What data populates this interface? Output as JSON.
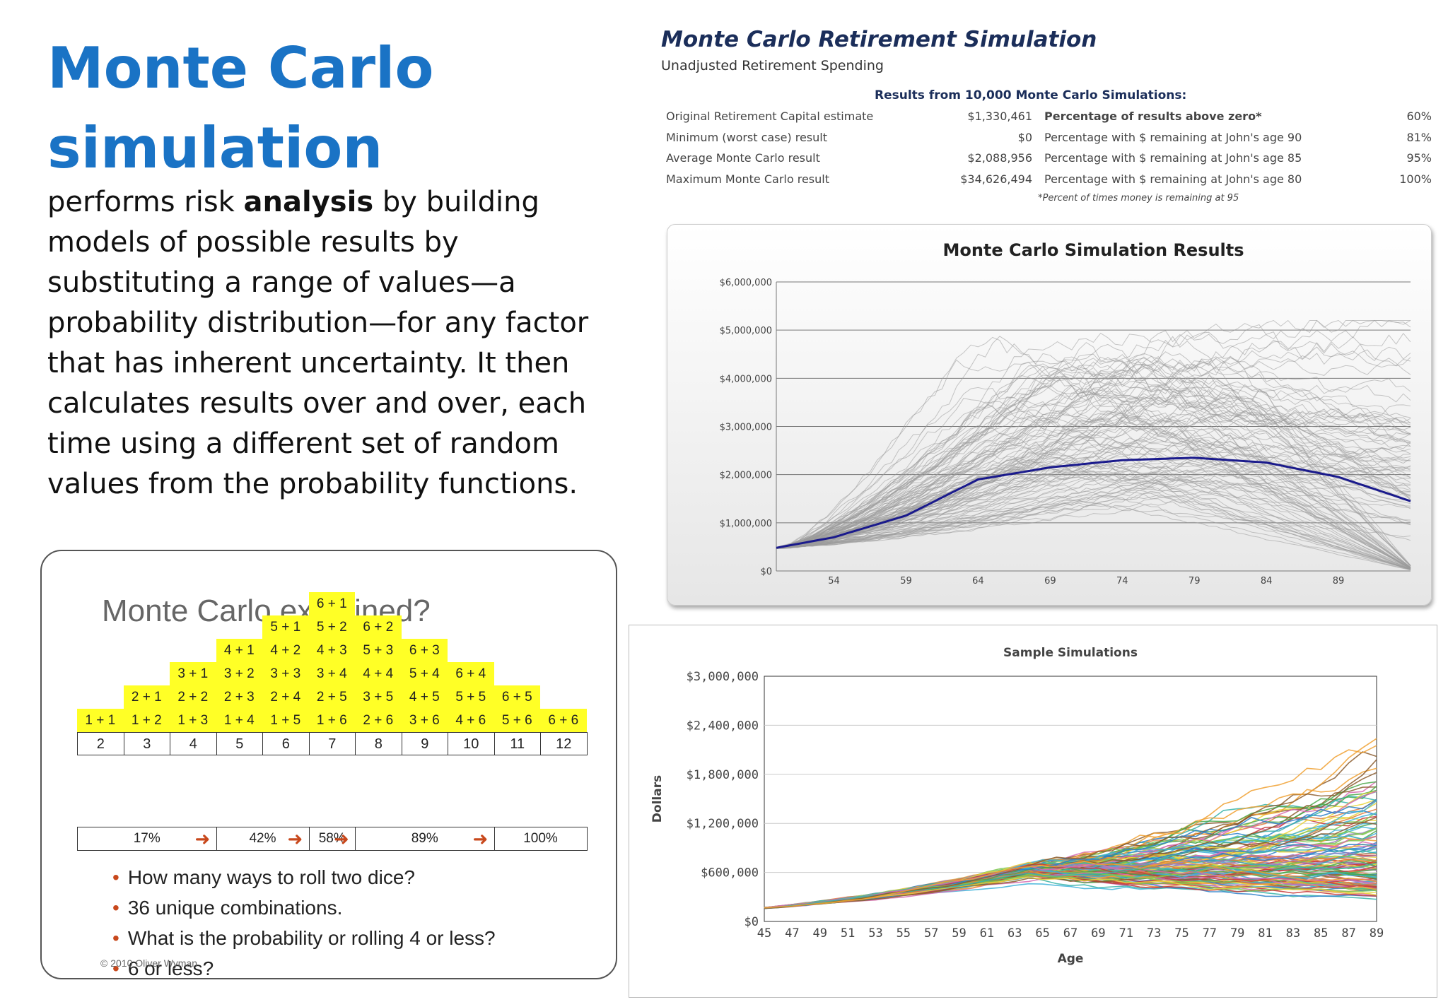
{
  "slide": {
    "title_line1": "Monte Carlo",
    "title_line2": "simulation",
    "body_prefix": "performs risk ",
    "body_bold": "analysis",
    "body_rest": " by building models of possible results by substituting a range of values—a probability distribution—for any factor that has inherent uncertainty. It then calculates results over and over, each time using a different set of random values from the probability functions."
  },
  "dice_panel": {
    "title": "Monte Carlo explained?",
    "rows": [
      [
        "6 + 1"
      ],
      [
        "5 + 1",
        "5 + 2",
        "6 + 2"
      ],
      [
        "4 + 1",
        "4 + 2",
        "4 + 3",
        "5 + 3",
        "6 + 3"
      ],
      [
        "3 + 1",
        "3 + 2",
        "3 + 3",
        "3 + 4",
        "4 + 4",
        "5 + 4",
        "6 + 4"
      ],
      [
        "2 + 1",
        "2 + 2",
        "2 + 3",
        "2 + 4",
        "2 + 5",
        "3 + 5",
        "4 + 5",
        "5 + 5",
        "6 + 5"
      ],
      [
        "1 + 1",
        "1 + 2",
        "1 + 3",
        "1 + 4",
        "1 + 5",
        "1 + 6",
        "2 + 6",
        "3 + 6",
        "4 + 6",
        "5 + 6",
        "6 + 6"
      ]
    ],
    "sums": [
      "2",
      "3",
      "4",
      "5",
      "6",
      "7",
      "8",
      "9",
      "10",
      "11",
      "12"
    ],
    "probabilities": [
      "17%",
      "42%",
      "58%",
      "89%",
      "100%"
    ],
    "arrow_color": "#c8481c",
    "bullets": [
      "How many ways to roll two dice?",
      "36 unique combinations.",
      "What is the probability or rolling 4 or less?",
      "6 or less?"
    ],
    "copyright": "© 2010 Oliver Wyman"
  },
  "retirement": {
    "title": "Monte Carlo Retirement Simulation",
    "subtitle": "Unadjusted Retirement Spending",
    "results_heading": "Results from 10,000 Monte Carlo Simulations:",
    "rows": [
      {
        "label": "Original Retirement Capital estimate",
        "value": "$1,330,461",
        "pct_label": "Percentage of results above zero*",
        "pct": "60%"
      },
      {
        "label": "Minimum (worst case) result",
        "value": "$0",
        "pct_label": "Percentage with $ remaining at John's age 90",
        "pct": "81%"
      },
      {
        "label": "Average Monte Carlo result",
        "value": "$2,088,956",
        "pct_label": "Percentage with $ remaining at John's age 85",
        "pct": "95%"
      },
      {
        "label": "Maximum Monte Carlo result",
        "value": "$34,626,494",
        "pct_label": "Percentage with $ remaining at John's age 80",
        "pct": "100%"
      }
    ],
    "footnote": "*Percent of times money is remaining at 95"
  },
  "chart_data": [
    {
      "type": "line",
      "title": "Monte Carlo Simulation Results",
      "xlabel": "",
      "ylabel": "",
      "x_ticks": [
        "54",
        "59",
        "64",
        "69",
        "74",
        "79",
        "84",
        "89"
      ],
      "y_ticks": [
        "$6,000,000",
        "$5,000,000",
        "$4,000,000",
        "$3,000,000",
        "$2,000,000",
        "$1,000,000",
        "$0"
      ],
      "xlim": [
        50,
        94
      ],
      "ylim": [
        0,
        6000000
      ],
      "grid": true,
      "series": [
        {
          "color": "#1a1a8c",
          "x": [
            50,
            54,
            59,
            64,
            69,
            74,
            79,
            84,
            89,
            94
          ],
          "values": [
            480000,
            700000,
            1150000,
            1900000,
            2150000,
            2300000,
            2350000,
            2250000,
            1950000,
            1450000
          ]
        }
      ],
      "band_color": "#9a9a9a"
    },
    {
      "type": "line",
      "title": "Sample Simulations",
      "xlabel": "Age",
      "ylabel": "Dollars",
      "x_ticks": [
        "45",
        "47",
        "49",
        "51",
        "53",
        "55",
        "57",
        "59",
        "61",
        "63",
        "65",
        "67",
        "69",
        "71",
        "73",
        "75",
        "77",
        "79",
        "81",
        "83",
        "85",
        "87",
        "89"
      ],
      "y_ticks": [
        "$3,000,000",
        "$2,400,000",
        "$1,800,000",
        "$1,200,000",
        "$600,000",
        "$0"
      ],
      "xlim": [
        45,
        89
      ],
      "ylim": [
        0,
        3000000
      ],
      "grid": true,
      "colors": [
        "#e07b39",
        "#9b7fc4",
        "#3db1d9",
        "#e8d33a",
        "#4aa84a",
        "#2a7fc9",
        "#c93a3a",
        "#7ec850",
        "#d66bb2",
        "#36b3a8",
        "#8a5a2b",
        "#f0a030"
      ]
    }
  ]
}
